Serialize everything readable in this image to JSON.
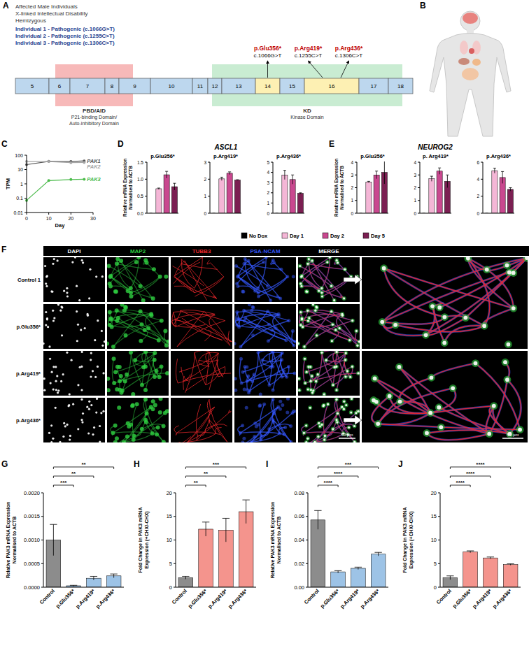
{
  "panel_labels": [
    "A",
    "B",
    "C",
    "D",
    "E",
    "F",
    "G",
    "H",
    "I",
    "J"
  ],
  "gene_diagram": {
    "header": [
      "Affected Male Individuals",
      "X-linked Intellectual Disability",
      "Hemizygous"
    ],
    "individuals": [
      "Individual 1 - Pathogenic (c.1066G>T)",
      "Individual 2 - Pathogenic (c.1255C>T)",
      "Individual 3 - Pathogenic (c.1306C>T)"
    ],
    "individual_color": "#1f3f8f",
    "exons": [
      5,
      6,
      7,
      8,
      9,
      10,
      11,
      12,
      13,
      14,
      15,
      16,
      17,
      18
    ],
    "exon_color": "#bdd7ee",
    "variant_exon_color": "#fdf0b3",
    "variant_color": "#c00000",
    "domains": [
      {
        "lines": [
          "PBD/AID",
          "P21-binding Domain/",
          "Auto-inhibitory Domain"
        ],
        "exons": [
          6,
          8
        ],
        "color": "#f7b9b9"
      },
      {
        "lines": [
          "KD",
          "Kinase Domain"
        ],
        "exons": [
          12,
          17
        ],
        "color": "#c9ecd2"
      }
    ],
    "variants": [
      {
        "protein": "p.Glu356*",
        "cdna": "c.1066G>T",
        "exon": 14
      },
      {
        "protein": "p.Arg419*",
        "cdna": "c.1255C>T",
        "exon": 16
      },
      {
        "protein": "p.Arg436*",
        "cdna": "c.1306C>T",
        "exon": 16
      }
    ]
  },
  "de_titles": [
    "ASCL1",
    "NEUROG2"
  ],
  "microscopy": {
    "channels": [
      "DAPI",
      "MAP2",
      "TUBB3",
      "PSA-NCAM",
      "MERGE"
    ],
    "channel_colors": [
      "#ffffff",
      "#2ecc40",
      "#e8262b",
      "#3558ff",
      "#ffffff"
    ],
    "rows": [
      "Control 1",
      "p.Glu356*",
      "p.Arg419*",
      "p.Arg436*"
    ],
    "scale_bars": [
      "50 µm",
      "50 µm"
    ]
  },
  "chart_data": [
    {
      "type": "line",
      "x": [
        0,
        10,
        20,
        26
      ],
      "xlim": [
        0,
        30
      ],
      "xticks": [
        0,
        10,
        20,
        30
      ],
      "ylim": [
        0.01,
        100
      ],
      "yticks": [
        0.01,
        0.1,
        1,
        10,
        100
      ],
      "log": "y",
      "x_label": "Day",
      "y_label": [
        "TPM"
      ],
      "marker": "circle",
      "series": [
        {
          "name": "PAK1",
          "color": "#555555",
          "values": [
            22,
            37,
            36,
            40
          ]
        },
        {
          "name": "PAK2",
          "color": "#a6a6a6",
          "values": [
            36,
            36,
            30,
            31
          ]
        },
        {
          "name": "PAK3",
          "color": "#4cbb4c",
          "values": [
            0.07,
            1.7,
            2.0,
            2.1
          ]
        }
      ]
    },
    {
      "type": "bar",
      "title": "p.Glu356*",
      "categories": [
        "No Dox",
        "Day 1",
        "Day 2",
        "Day 5"
      ],
      "colors": [
        "#000000",
        "#f4b6d6",
        "#c9488f",
        "#7b1f52"
      ],
      "values": [
        0,
        0.72,
        1.13,
        0.78
      ],
      "errors": [
        0,
        0.02,
        0.1,
        0.1
      ],
      "ylim": [
        0,
        1.5
      ],
      "yticks": [
        {
          "value": 0,
          "label": "0.0"
        },
        {
          "value": 0.5,
          "label": "0.5"
        },
        {
          "value": 1,
          "label": "1.0"
        },
        {
          "value": 1.5,
          "label": "1.5"
        }
      ],
      "y_label": [
        "Relative mRNA Expression",
        "Normalised to ACTB"
      ],
      "tick_labels": "y",
      "legend": "bottom"
    },
    {
      "type": "bar",
      "title": "p.Arg419*",
      "categories": [
        "No Dox",
        "Day 1",
        "Day 2",
        "Day 5"
      ],
      "colors": [
        "#000000",
        "#f4b6d6",
        "#c9488f",
        "#7b1f52"
      ],
      "values": [
        0,
        2.02,
        2.35,
        1.95
      ],
      "errors": [
        0,
        0.1,
        0.08,
        0.02
      ],
      "ylim": [
        0,
        3
      ],
      "yticks": [
        0,
        1,
        2,
        3
      ],
      "tick_labels": "y"
    },
    {
      "type": "bar",
      "title": "p.Arg436*",
      "categories": [
        "No Dox",
        "Day 1",
        "Day 2",
        "Day 5"
      ],
      "colors": [
        "#000000",
        "#f4b6d6",
        "#c9488f",
        "#7b1f52"
      ],
      "values": [
        0,
        3.75,
        3.3,
        1.95
      ],
      "errors": [
        0,
        0.45,
        0.45,
        0.05
      ],
      "ylim": [
        0,
        5
      ],
      "yticks": [
        0,
        1,
        2,
        3,
        4,
        5
      ],
      "tick_labels": "y"
    },
    {
      "type": "bar",
      "title": "p.Glu356*",
      "categories": [
        "No Dox",
        "Day 1",
        "Day 2",
        "Day 5"
      ],
      "colors": [
        "#000000",
        "#f4b6d6",
        "#c9488f",
        "#7b1f52"
      ],
      "values": [
        0,
        2.45,
        3.0,
        3.2
      ],
      "errors": [
        0,
        0.05,
        0.3,
        0.9
      ],
      "ylim": [
        0,
        4
      ],
      "yticks": [
        0,
        1,
        2,
        3,
        4
      ],
      "y_label": [
        "Relative mRNA Expression",
        "Normalised to ACTB"
      ],
      "tick_labels": "y"
    },
    {
      "type": "bar",
      "title": "p. Arg419*",
      "categories": [
        "No Dox",
        "Day 1",
        "Day 2",
        "Day 5"
      ],
      "colors": [
        "#000000",
        "#f4b6d6",
        "#c9488f",
        "#7b1f52"
      ],
      "values": [
        0,
        2.7,
        3.3,
        2.5
      ],
      "errors": [
        0,
        0.2,
        0.25,
        0.5
      ],
      "ylim": [
        0,
        4
      ],
      "yticks": [
        0,
        1,
        2,
        3,
        4
      ],
      "tick_labels": "y"
    },
    {
      "type": "bar",
      "title": "p.Arg436*",
      "categories": [
        "No Dox",
        "Day 1",
        "Day 2",
        "Day 5"
      ],
      "colors": [
        "#000000",
        "#f4b6d6",
        "#c9488f",
        "#7b1f52"
      ],
      "values": [
        0,
        5.0,
        4.2,
        2.8
      ],
      "errors": [
        0,
        0.3,
        0.7,
        0.2
      ],
      "ylim": [
        0,
        6
      ],
      "yticks": [
        0,
        2,
        4,
        6
      ],
      "tick_labels": "y"
    },
    {
      "type": "bar",
      "categories": [
        "Control",
        "p.Glu356*",
        "p.Arg419*",
        "p.Arg436*"
      ],
      "colors": [
        "#8c8c8c",
        "#9dc3e6",
        "#9dc3e6",
        "#9dc3e6"
      ],
      "values": [
        0.001,
        3e-05,
        0.00019,
        0.00024
      ],
      "errors": [
        0.00033,
        1e-05,
        4e-05,
        4e-05
      ],
      "ylim": [
        0,
        0.002
      ],
      "yticks": [
        {
          "value": 0,
          "label": "0.0000"
        },
        {
          "value": 0.0005,
          "label": "0.0005"
        },
        {
          "value": 0.001,
          "label": "0.0010"
        },
        {
          "value": 0.0015,
          "label": "0.0015"
        },
        {
          "value": 0.002,
          "label": "0.0020"
        }
      ],
      "y_label": [
        "Relative PAK3 mRNA Expression",
        "Normalised to ACTB"
      ],
      "significance": [
        null,
        "***",
        "**",
        "**"
      ]
    },
    {
      "type": "bar",
      "categories": [
        "Control",
        "p.Glu356*",
        "p.Arg419*",
        "p.Arg436*"
      ],
      "colors": [
        "#8c8c8c",
        "#f4948d",
        "#f4948d",
        "#f4948d"
      ],
      "values": [
        2.0,
        12.3,
        12.1,
        16.0
      ],
      "errors": [
        0.3,
        1.5,
        2.5,
        2.5
      ],
      "ylim": [
        0,
        20
      ],
      "yticks": [
        0,
        5,
        10,
        15,
        20
      ],
      "y_label": [
        "Fold Change in PAK3 mRNA",
        "Expression (+CHX/-CHX)"
      ],
      "significance": [
        null,
        "**",
        "**",
        "***"
      ]
    },
    {
      "type": "bar",
      "categories": [
        "Control",
        "p.Glu356*",
        "p.Arg419*",
        "p.Arg436*"
      ],
      "colors": [
        "#8c8c8c",
        "#9dc3e6",
        "#9dc3e6",
        "#9dc3e6"
      ],
      "values": [
        0.057,
        0.013,
        0.016,
        0.028
      ],
      "errors": [
        0.008,
        0.001,
        0.001,
        0.0015
      ],
      "ylim": [
        0,
        0.08
      ],
      "yticks": [
        {
          "value": 0,
          "label": "0.00"
        },
        {
          "value": 0.02,
          "label": "0.02"
        },
        {
          "value": 0.04,
          "label": "0.04"
        },
        {
          "value": 0.06,
          "label": "0.06"
        },
        {
          "value": 0.08,
          "label": "0.08"
        }
      ],
      "y_label": [
        "Relative PAK3 mRNA Expression",
        "Normalised to ACTB"
      ],
      "significance": [
        null,
        "****",
        "****",
        "***"
      ]
    },
    {
      "type": "bar",
      "categories": [
        "Control",
        "p.Glu356*",
        "p.Arg419*",
        "p.Arg436*"
      ],
      "colors": [
        "#8c8c8c",
        "#f4948d",
        "#f4948d",
        "#f4948d"
      ],
      "values": [
        2.0,
        7.5,
        6.2,
        4.8
      ],
      "errors": [
        0.4,
        0.2,
        0.2,
        0.15
      ],
      "ylim": [
        0,
        20
      ],
      "yticks": [
        0,
        5,
        10,
        15,
        20
      ],
      "y_label": [
        "Fold Change in PAK3 mRNA",
        "Expression (+CHX/-CHX)"
      ],
      "significance": [
        null,
        "****",
        "****",
        "****"
      ]
    }
  ]
}
